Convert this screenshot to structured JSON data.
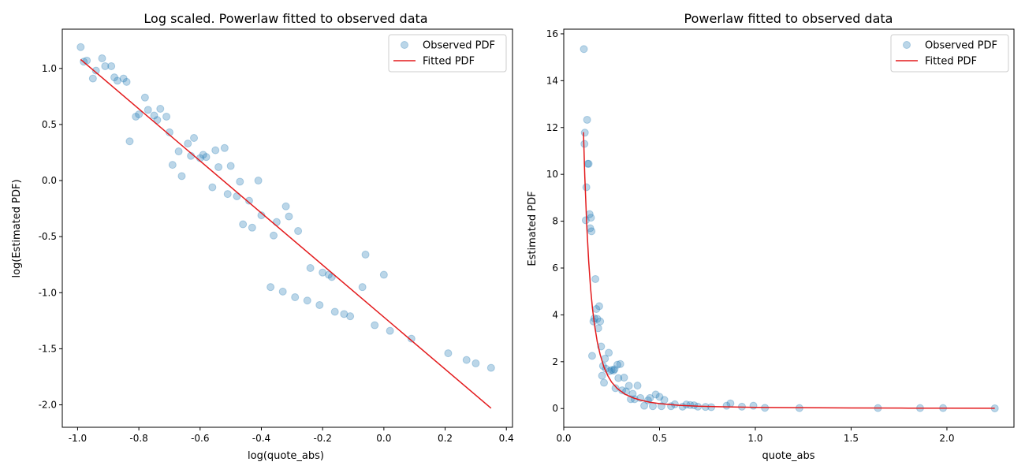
{
  "chart_data": [
    {
      "type": "scatter",
      "title": "Log scaled. Powerlaw fitted to observed data",
      "xlabel": "log(quote_abs)",
      "ylabel": "log(Estimated PDF)",
      "xlim": [
        -1.05,
        0.42
      ],
      "ylim": [
        -2.2,
        1.35
      ],
      "xticks": [
        "-1.0",
        "-0.8",
        "-0.6",
        "-0.4",
        "-0.2",
        "0.0",
        "0.2",
        "0.4"
      ],
      "yticks": [
        "-2.0",
        "-1.5",
        "-1.0",
        "-0.5",
        "0.0",
        "0.5",
        "1.0"
      ],
      "grid": false,
      "legend_position": "top-right",
      "colors": {
        "observed": "#1f77b4",
        "fitted": "#e31a1c"
      },
      "series": [
        {
          "name": "Observed PDF",
          "kind": "scatter",
          "points": [
            [
              -0.99,
              1.19
            ],
            [
              -0.98,
              1.06
            ],
            [
              -0.97,
              1.07
            ],
            [
              -0.95,
              0.91
            ],
            [
              -0.94,
              0.98
            ],
            [
              -0.92,
              1.09
            ],
            [
              -0.91,
              1.02
            ],
            [
              -0.89,
              1.02
            ],
            [
              -0.88,
              0.92
            ],
            [
              -0.87,
              0.89
            ],
            [
              -0.85,
              0.91
            ],
            [
              -0.84,
              0.88
            ],
            [
              -0.83,
              0.35
            ],
            [
              -0.81,
              0.57
            ],
            [
              -0.8,
              0.59
            ],
            [
              -0.78,
              0.74
            ],
            [
              -0.77,
              0.63
            ],
            [
              -0.75,
              0.58
            ],
            [
              -0.74,
              0.54
            ],
            [
              -0.73,
              0.64
            ],
            [
              -0.71,
              0.57
            ],
            [
              -0.7,
              0.43
            ],
            [
              -0.69,
              0.14
            ],
            [
              -0.67,
              0.26
            ],
            [
              -0.66,
              0.04
            ],
            [
              -0.64,
              0.33
            ],
            [
              -0.63,
              0.22
            ],
            [
              -0.62,
              0.38
            ],
            [
              -0.6,
              0.2
            ],
            [
              -0.59,
              0.23
            ],
            [
              -0.58,
              0.21
            ],
            [
              -0.56,
              -0.06
            ],
            [
              -0.55,
              0.27
            ],
            [
              -0.54,
              0.12
            ],
            [
              -0.52,
              0.29
            ],
            [
              -0.51,
              -0.12
            ],
            [
              -0.5,
              0.13
            ],
            [
              -0.48,
              -0.14
            ],
            [
              -0.47,
              -0.01
            ],
            [
              -0.46,
              -0.39
            ],
            [
              -0.44,
              -0.18
            ],
            [
              -0.43,
              -0.42
            ],
            [
              -0.41,
              0.0
            ],
            [
              -0.4,
              -0.31
            ],
            [
              -0.37,
              -0.95
            ],
            [
              -0.36,
              -0.49
            ],
            [
              -0.35,
              -0.37
            ],
            [
              -0.33,
              -0.99
            ],
            [
              -0.32,
              -0.23
            ],
            [
              -0.31,
              -0.32
            ],
            [
              -0.29,
              -1.04
            ],
            [
              -0.28,
              -0.45
            ],
            [
              -0.25,
              -1.07
            ],
            [
              -0.24,
              -0.78
            ],
            [
              -0.21,
              -1.11
            ],
            [
              -0.2,
              -0.82
            ],
            [
              -0.18,
              -0.84
            ],
            [
              -0.17,
              -0.86
            ],
            [
              -0.16,
              -1.17
            ],
            [
              -0.13,
              -1.19
            ],
            [
              -0.11,
              -1.21
            ],
            [
              -0.07,
              -0.95
            ],
            [
              -0.06,
              -0.66
            ],
            [
              -0.03,
              -1.29
            ],
            [
              0.0,
              -0.84
            ],
            [
              0.02,
              -1.34
            ],
            [
              0.09,
              -1.41
            ],
            [
              0.21,
              -1.54
            ],
            [
              0.27,
              -1.6
            ],
            [
              0.3,
              -1.63
            ],
            [
              0.35,
              -1.67
            ]
          ]
        },
        {
          "name": "Fitted PDF",
          "kind": "line",
          "points": [
            [
              -0.99,
              1.08
            ],
            [
              0.35,
              -2.03
            ]
          ]
        }
      ]
    },
    {
      "type": "scatter",
      "title": "Powerlaw fitted to observed data",
      "xlabel": "quote_abs",
      "ylabel": "Estimated PDF",
      "xlim": [
        0.0,
        2.35
      ],
      "ylim": [
        -0.8,
        16.2
      ],
      "xticks": [
        "0.0",
        "0.5",
        "1.0",
        "1.5",
        "2.0"
      ],
      "yticks": [
        "0",
        "2",
        "4",
        "6",
        "8",
        "10",
        "12",
        "14",
        "16"
      ],
      "grid": false,
      "legend_position": "top-right",
      "colors": {
        "observed": "#1f77b4",
        "fitted": "#e31a1c"
      },
      "series": [
        {
          "name": "Observed PDF",
          "kind": "scatter",
          "points": [
            [
              0.105,
              15.35
            ],
            [
              0.108,
              11.3
            ],
            [
              0.11,
              11.78
            ],
            [
              0.115,
              8.04
            ],
            [
              0.118,
              9.45
            ],
            [
              0.122,
              12.33
            ],
            [
              0.125,
              10.45
            ],
            [
              0.13,
              10.45
            ],
            [
              0.135,
              8.3
            ],
            [
              0.138,
              7.7
            ],
            [
              0.142,
              8.15
            ],
            [
              0.145,
              7.57
            ],
            [
              0.148,
              2.25
            ],
            [
              0.155,
              3.72
            ],
            [
              0.16,
              3.85
            ],
            [
              0.165,
              5.53
            ],
            [
              0.17,
              4.25
            ],
            [
              0.175,
              3.83
            ],
            [
              0.18,
              3.43
            ],
            [
              0.185,
              4.37
            ],
            [
              0.19,
              3.72
            ],
            [
              0.195,
              2.65
            ],
            [
              0.2,
              1.4
            ],
            [
              0.205,
              1.82
            ],
            [
              0.21,
              1.1
            ],
            [
              0.215,
              2.13
            ],
            [
              0.22,
              1.7
            ],
            [
              0.235,
              2.38
            ],
            [
              0.24,
              1.6
            ],
            [
              0.25,
              1.65
            ],
            [
              0.26,
              1.62
            ],
            [
              0.265,
              1.68
            ],
            [
              0.27,
              0.87
            ],
            [
              0.28,
              1.87
            ],
            [
              0.285,
              1.3
            ],
            [
              0.295,
              1.9
            ],
            [
              0.305,
              0.78
            ],
            [
              0.315,
              1.32
            ],
            [
              0.325,
              0.73
            ],
            [
              0.34,
              0.97
            ],
            [
              0.35,
              0.4
            ],
            [
              0.36,
              0.63
            ],
            [
              0.37,
              0.4
            ],
            [
              0.385,
              0.98
            ],
            [
              0.4,
              0.45
            ],
            [
              0.42,
              0.12
            ],
            [
              0.44,
              0.35
            ],
            [
              0.45,
              0.45
            ],
            [
              0.465,
              0.1
            ],
            [
              0.48,
              0.6
            ],
            [
              0.5,
              0.5
            ],
            [
              0.51,
              0.1
            ],
            [
              0.525,
              0.37
            ],
            [
              0.56,
              0.1
            ],
            [
              0.58,
              0.18
            ],
            [
              0.62,
              0.08
            ],
            [
              0.64,
              0.17
            ],
            [
              0.66,
              0.15
            ],
            [
              0.68,
              0.14
            ],
            [
              0.7,
              0.08
            ],
            [
              0.74,
              0.07
            ],
            [
              0.77,
              0.06
            ],
            [
              0.85,
              0.12
            ],
            [
              0.87,
              0.22
            ],
            [
              0.93,
              0.08
            ],
            [
              0.99,
              0.12
            ],
            [
              1.05,
              0.03
            ],
            [
              1.23,
              0.02
            ],
            [
              1.64,
              0.02
            ],
            [
              1.86,
              0.02
            ],
            [
              1.98,
              0.02
            ],
            [
              2.25,
              0.01
            ]
          ]
        },
        {
          "name": "Fitted PDF",
          "kind": "line",
          "points": [
            [
              0.103,
              11.8
            ],
            [
              0.11,
              9.9
            ],
            [
              0.12,
              7.8
            ],
            [
              0.13,
              6.3
            ],
            [
              0.14,
              5.15
            ],
            [
              0.15,
              4.28
            ],
            [
              0.16,
              3.6
            ],
            [
              0.175,
              2.85
            ],
            [
              0.19,
              2.3
            ],
            [
              0.21,
              1.77
            ],
            [
              0.23,
              1.4
            ],
            [
              0.25,
              1.13
            ],
            [
              0.28,
              0.85
            ],
            [
              0.32,
              0.61
            ],
            [
              0.36,
              0.46
            ],
            [
              0.4,
              0.36
            ],
            [
              0.45,
              0.27
            ],
            [
              0.5,
              0.21
            ],
            [
              0.6,
              0.14
            ],
            [
              0.7,
              0.1
            ],
            [
              0.8,
              0.08
            ],
            [
              1.0,
              0.05
            ],
            [
              1.2,
              0.037
            ],
            [
              1.5,
              0.025
            ],
            [
              1.8,
              0.018
            ],
            [
              2.0,
              0.015
            ],
            [
              2.25,
              0.012
            ]
          ]
        }
      ]
    }
  ]
}
